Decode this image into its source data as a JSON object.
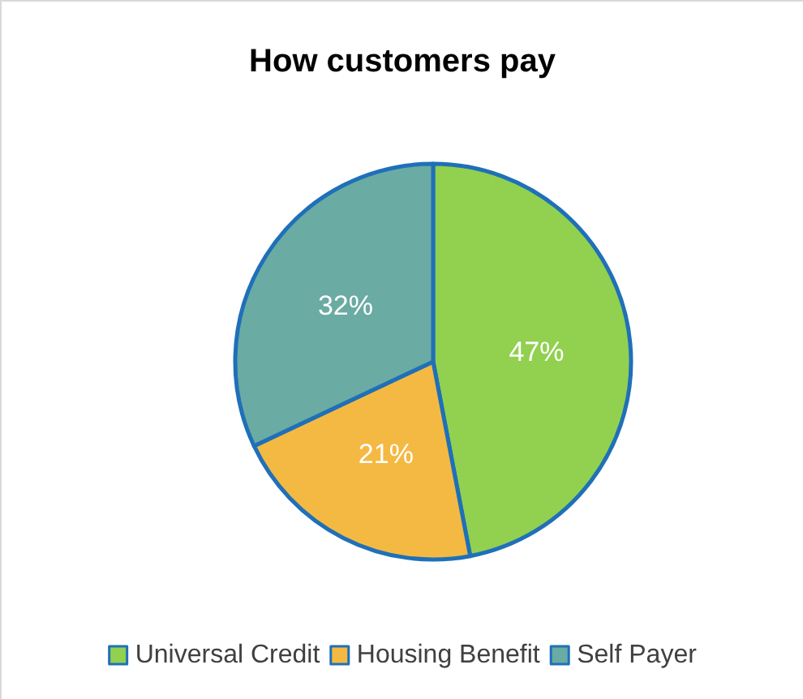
{
  "chart_data": {
    "type": "pie",
    "title": "How customers pay",
    "categories": [
      "Universal Credit",
      "Housing Benefit",
      "Self Payer"
    ],
    "values": [
      47,
      21,
      32
    ],
    "colors": [
      "#92d050",
      "#f4b942",
      "#6aaba3"
    ],
    "value_labels": [
      "47%",
      "21%",
      "32%"
    ],
    "legend": "bottom"
  }
}
